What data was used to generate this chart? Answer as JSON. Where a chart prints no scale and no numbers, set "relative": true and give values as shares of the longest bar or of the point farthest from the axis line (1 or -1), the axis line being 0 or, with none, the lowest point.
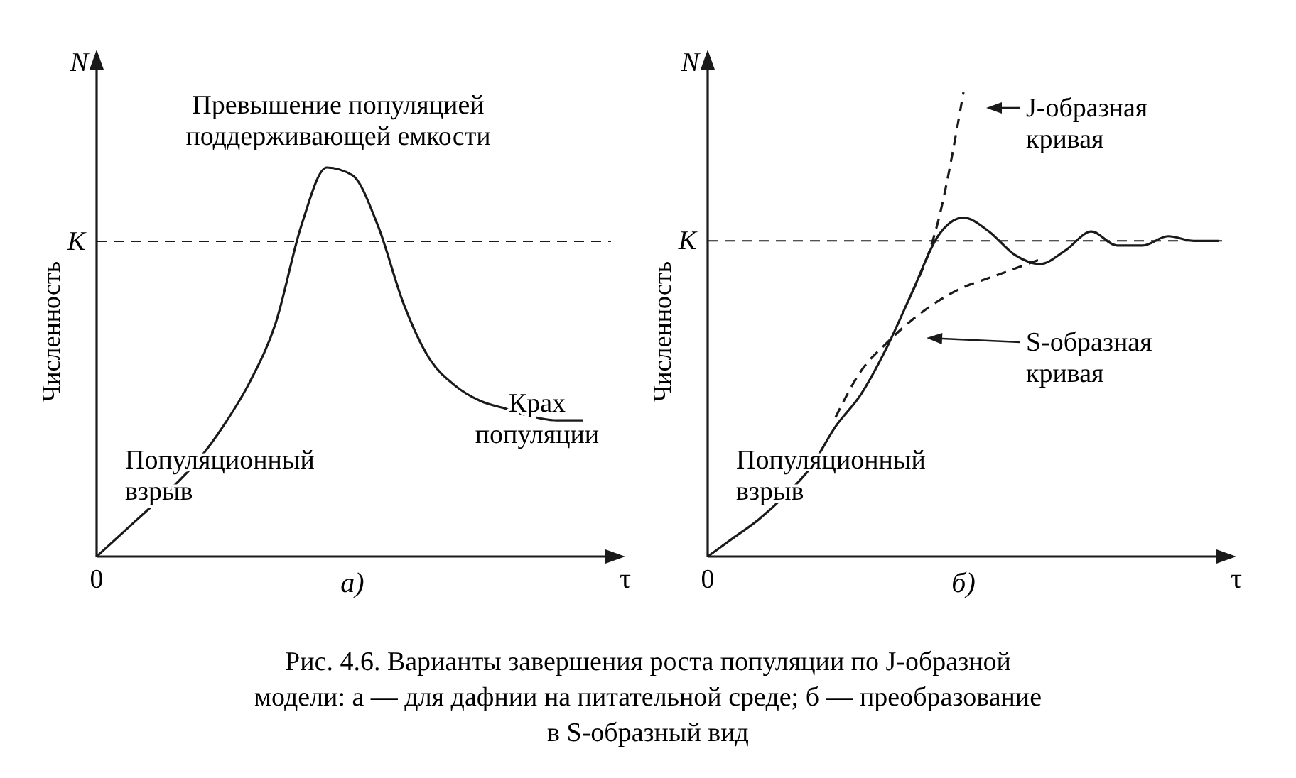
{
  "chart_data": [
    {
      "type": "line",
      "title": "а)",
      "xlabel": "τ",
      "ylabel": "Численность",
      "relative": true,
      "categories": [
        null,
        null,
        null,
        null,
        null,
        null,
        null,
        null,
        null,
        null,
        null,
        null,
        null,
        null,
        null,
        null,
        null,
        null,
        null,
        null
      ],
      "series": [
        {
          "color": "#1a1a1a",
          "values": [
            0,
            0.06,
            0.12,
            0.18,
            0.25,
            0.34,
            0.45,
            0.6,
            0.85,
            1,
            0.98,
            0.85,
            0.65,
            0.51,
            0.44,
            0.4,
            0.38,
            0.36,
            0.35,
            0.35
          ]
        }
      ],
      "ref_lines": [
        {
          "axis": "y",
          "value": 0.81,
          "label": "K",
          "color": "#1a1a1a",
          "line_style": "dashed"
        }
      ],
      "annotations": [
        "N",
        "0",
        "Превышение популяцией поддерживающей емкости",
        "Крах популяции",
        "Популяционный взрыв",
        "Рис. 4.6. Варианты завершения роста популяции по J-образной",
        "модели: а — для дафнии на питательной среде; б — преобразование",
        "в S-образный вид"
      ]
    },
    {
      "type": "line",
      "title": "б)",
      "xlabel": "τ",
      "ylabel": "Численность",
      "relative": true,
      "categories": [
        null,
        null,
        null,
        null,
        null,
        null,
        null,
        null,
        null,
        null,
        null,
        null,
        null,
        null,
        null,
        null,
        null,
        null,
        null,
        null,
        null
      ],
      "series": [
        {
          "color": "#1a1a1a",
          "line_style": "solid",
          "values": [
            0,
            0.04,
            0.08,
            0.13,
            0.19,
            0.28,
            0.35,
            0.45,
            0.57,
            0.69,
            0.73,
            0.7,
            0.65,
            0.63,
            0.66,
            0.7,
            0.67,
            0.67,
            0.69,
            0.68,
            0.68
          ]
        },
        {
          "color": "#1a1a1a",
          "line_style": "dashed",
          "values": [
            null,
            null,
            null,
            null,
            null,
            null,
            null,
            null,
            0.57,
            0.72,
            1,
            null,
            null,
            null,
            null,
            null,
            null,
            null,
            null,
            null,
            null
          ]
        },
        {
          "color": "#1a1a1a",
          "line_style": "dashed",
          "values": [
            null,
            null,
            null,
            null,
            null,
            0.3,
            0.4,
            0.46,
            0.51,
            0.55,
            0.58,
            0.6,
            0.62,
            0.64,
            null,
            null,
            null,
            null,
            null,
            null,
            null
          ]
        }
      ],
      "ref_lines": [
        {
          "axis": "y",
          "value": 0.68,
          "label": "K",
          "color": "#1a1a1a",
          "line_style": "dashed"
        }
      ],
      "annotations": [
        "N",
        "0",
        "J-образная кривая",
        "S-образная кривая",
        "Популяционный взрыв"
      ]
    }
  ]
}
